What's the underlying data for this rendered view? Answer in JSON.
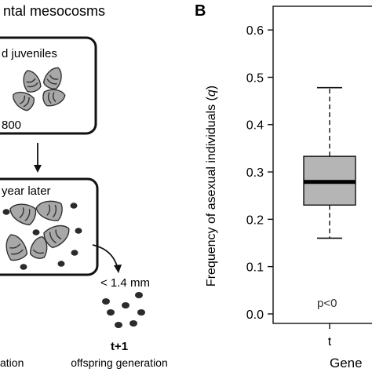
{
  "panel_a": {
    "title": "ntal mesocosms",
    "top_box_label": "d juveniles",
    "top_box_count": "800",
    "middle_box_label": "year later",
    "size_filter_label": "< 1.4 mm",
    "generation_code": "t+1",
    "generation_label": "offspring generation",
    "left_cut_label": "ation"
  },
  "panel_b": {
    "letter": "B",
    "pvalue_text": "p<0",
    "xlabel_partial": "Gene"
  },
  "chart_data": {
    "type": "box",
    "ylabel": "Frequency of asexual individuals (q)",
    "ylabel_main": "Frequency of asexual individuals (",
    "ylabel_var": "q",
    "ylabel_close": ")",
    "ylim": [
      -0.02,
      0.65
    ],
    "yticks": [
      0.0,
      0.1,
      0.2,
      0.3,
      0.4,
      0.5,
      0.6
    ],
    "ytick_labels": [
      "0.0",
      "0.1",
      "0.2",
      "0.3",
      "0.4",
      "0.5",
      "0.6"
    ],
    "categories": [
      "t"
    ],
    "boxes": [
      {
        "category": "t",
        "whisker_low": 0.16,
        "q1": 0.23,
        "median": 0.279,
        "q3": 0.333,
        "whisker_high": 0.478
      }
    ],
    "box_fill": "#b5b5b5"
  }
}
